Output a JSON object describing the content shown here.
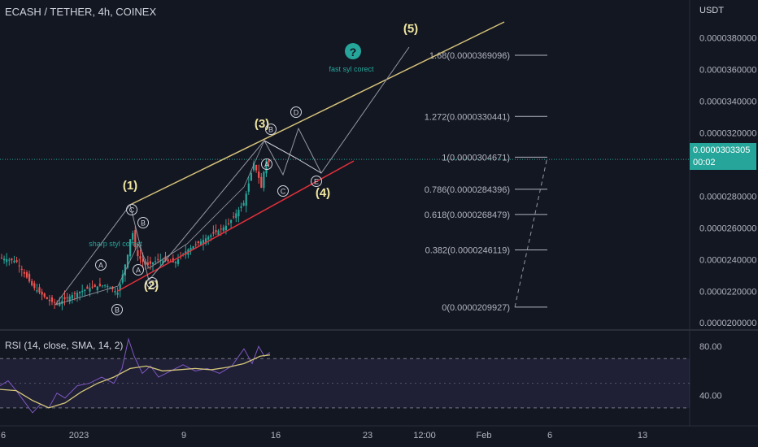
{
  "header": {
    "title": "ECASH / TETHER, 4h, COINEX",
    "price_unit": "USDT"
  },
  "last_price": {
    "value": "0.0000303305",
    "countdown": "00:02"
  },
  "chart_data": {
    "type": "candlestick",
    "price_axis": {
      "ticks": [
        "0.0000380000",
        "0.0000360000",
        "0.0000340000",
        "0.0000320000",
        "0.0000280000",
        "0.0000260000",
        "0.0000240000",
        "0.0000220000",
        "0.0000200000"
      ],
      "tick_values": [
        38.0,
        36.0,
        34.0,
        32.0,
        28.0,
        26.0,
        24.0,
        22.0,
        20.0
      ],
      "ylim": [
        19.6,
        40.4
      ]
    },
    "time_axis": {
      "ticks": [
        "6",
        "2023",
        "9",
        "16",
        "23",
        "12:00",
        "Feb",
        "6",
        "13"
      ]
    },
    "fibonacci": [
      {
        "label": "1.68(0.0000369096)",
        "value": 36.91
      },
      {
        "label": "1.272(0.0000330441)",
        "value": 33.04
      },
      {
        "label": "1(0.0000304671)",
        "value": 30.47
      },
      {
        "label": "0.786(0.0000284396)",
        "value": 28.44
      },
      {
        "label": "0.618(0.0000268479)",
        "value": 26.85
      },
      {
        "label": "0.382(0.0000246119)",
        "value": 24.61
      },
      {
        "label": "0(0.0000209927)",
        "value": 20.99
      }
    ],
    "wave_labels": [
      "(1)",
      "(2)",
      "(3)",
      "(4)",
      "(5)"
    ],
    "sub_labels": [
      "A",
      "B",
      "C",
      "D",
      "E"
    ],
    "annotations": [
      "sharp styl corect",
      "fast syl corect"
    ],
    "question_icon": "?",
    "rsi": {
      "title": "RSI (14, close, SMA, 14, 2)",
      "ticks": [
        "80.00",
        "40.00"
      ],
      "tick_values": [
        80,
        40
      ],
      "band": [
        30,
        70
      ],
      "ylim": [
        18,
        92
      ]
    },
    "colors": {
      "up": "#26a69a",
      "down": "#ef5350",
      "channel_top": "#d7c37a",
      "channel_bottom": "#e5303a",
      "rsi": "#7e57c2",
      "rsi_ma": "#d4c77a",
      "wave": "#f0e6a0",
      "annotation": "#26a69a"
    }
  }
}
